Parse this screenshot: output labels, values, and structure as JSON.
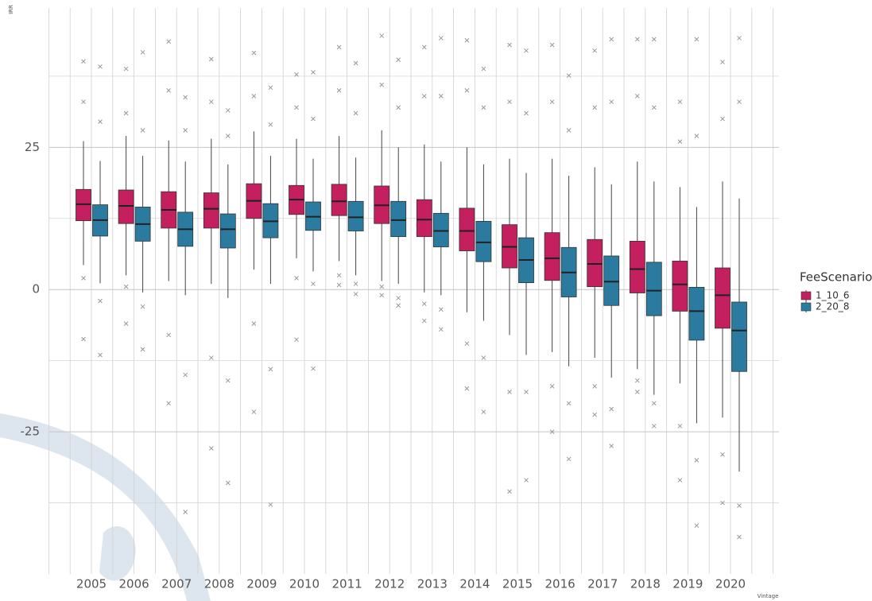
{
  "chart_data": {
    "type": "boxplot",
    "y_label": "IRR",
    "x_label": "Vintage",
    "legend_title": "FeeScenario",
    "categories": [
      "2005",
      "2006",
      "2007",
      "2008",
      "2009",
      "2010",
      "2011",
      "2012",
      "2013",
      "2014",
      "2015",
      "2016",
      "2017",
      "2018",
      "2019",
      "2020"
    ],
    "ylim": [
      -50,
      49.5
    ],
    "yticks": [
      -25,
      0,
      25
    ],
    "minor_yticks": [
      -37.5,
      -12.5,
      12.5,
      37.5
    ],
    "grid": true,
    "legend": "right",
    "series": [
      {
        "name": "1_10_6",
        "color": "#c41f5f",
        "boxes": [
          {
            "min": 4.3,
            "q1": 12.1,
            "median": 15.0,
            "q3": 17.6,
            "max": 26.1,
            "outliers": [
              40.1,
              33.0,
              2.0,
              -8.7
            ]
          },
          {
            "min": 2.5,
            "q1": 11.6,
            "median": 14.7,
            "q3": 17.5,
            "max": 27.0,
            "outliers": [
              38.8,
              31.0,
              0.5,
              -6.0
            ]
          },
          {
            "min": 1.5,
            "q1": 10.8,
            "median": 14.0,
            "q3": 17.2,
            "max": 26.2,
            "outliers": [
              43.6,
              35.0,
              -8.0,
              -20.0
            ]
          },
          {
            "min": 1.0,
            "q1": 10.8,
            "median": 14.2,
            "q3": 17.0,
            "max": 26.5,
            "outliers": [
              40.5,
              33.0,
              -12.0,
              -27.9
            ]
          },
          {
            "min": 3.5,
            "q1": 12.5,
            "median": 15.6,
            "q3": 18.6,
            "max": 27.8,
            "outliers": [
              41.6,
              34.0,
              -6.0,
              -21.5
            ]
          },
          {
            "min": 5.5,
            "q1": 13.2,
            "median": 15.8,
            "q3": 18.3,
            "max": 26.5,
            "outliers": [
              37.8,
              32.0,
              2.0,
              -8.8
            ]
          },
          {
            "min": 5.0,
            "q1": 13.0,
            "median": 15.5,
            "q3": 18.5,
            "max": 27.0,
            "outliers": [
              42.6,
              35.0,
              2.5,
              0.8
            ]
          },
          {
            "min": 1.5,
            "q1": 11.6,
            "median": 14.8,
            "q3": 18.2,
            "max": 28.0,
            "outliers": [
              44.6,
              36.0,
              0.5,
              -1.0
            ]
          },
          {
            "min": -0.5,
            "q1": 9.3,
            "median": 12.3,
            "q3": 15.8,
            "max": 25.5,
            "outliers": [
              42.6,
              34.0,
              -2.5,
              -5.5
            ]
          },
          {
            "min": -4.0,
            "q1": 6.8,
            "median": 10.3,
            "q3": 14.3,
            "max": 25.0,
            "outliers": [
              43.8,
              35.0,
              -9.5,
              -17.4
            ]
          },
          {
            "min": -8.0,
            "q1": 3.8,
            "median": 7.5,
            "q3": 11.4,
            "max": 23.0,
            "outliers": [
              43.0,
              33.0,
              -18.0,
              -35.5
            ]
          },
          {
            "min": -11.0,
            "q1": 1.6,
            "median": 5.5,
            "q3": 10.0,
            "max": 23.0,
            "outliers": [
              43.0,
              33.0,
              -17.0,
              -25.0
            ]
          },
          {
            "min": -12.0,
            "q1": 0.5,
            "median": 4.5,
            "q3": 8.8,
            "max": 21.5,
            "outliers": [
              42.0,
              32.0,
              -17.0,
              -22.0
            ]
          },
          {
            "min": -14.0,
            "q1": -0.6,
            "median": 3.6,
            "q3": 8.5,
            "max": 22.5,
            "outliers": [
              44.0,
              34.0,
              -16.0,
              -18.0
            ]
          },
          {
            "min": -16.5,
            "q1": -3.8,
            "median": 0.9,
            "q3": 5.0,
            "max": 18.0,
            "outliers": [
              33.0,
              26.0,
              -24.0,
              -33.5
            ]
          },
          {
            "min": -22.5,
            "q1": -6.8,
            "median": -1.0,
            "q3": 3.8,
            "max": 19.0,
            "outliers": [
              40.0,
              30.0,
              -29.0,
              -37.5
            ]
          }
        ]
      },
      {
        "name": "2_20_8",
        "color": "#2a7b9f",
        "boxes": [
          {
            "min": 1.1,
            "q1": 9.4,
            "median": 12.2,
            "q3": 14.9,
            "max": 22.6,
            "outliers": [
              39.2,
              29.5,
              -2.0,
              -11.5
            ]
          },
          {
            "min": -0.5,
            "q1": 8.5,
            "median": 11.5,
            "q3": 14.5,
            "max": 23.5,
            "outliers": [
              41.7,
              28.0,
              -3.0,
              -10.5
            ]
          },
          {
            "min": -1.0,
            "q1": 7.6,
            "median": 10.6,
            "q3": 13.6,
            "max": 22.5,
            "outliers": [
              33.8,
              28.0,
              -15.0,
              -39.1
            ]
          },
          {
            "min": -1.5,
            "q1": 7.3,
            "median": 10.6,
            "q3": 13.3,
            "max": 22.0,
            "outliers": [
              31.5,
              27.0,
              -16.0,
              -34.0
            ]
          },
          {
            "min": 1.0,
            "q1": 9.1,
            "median": 12.0,
            "q3": 15.1,
            "max": 23.5,
            "outliers": [
              35.5,
              29.0,
              -14.0,
              -37.8
            ]
          },
          {
            "min": 3.2,
            "q1": 10.4,
            "median": 12.8,
            "q3": 15.4,
            "max": 23.0,
            "outliers": [
              38.2,
              30.0,
              1.0,
              -13.9
            ]
          },
          {
            "min": 2.5,
            "q1": 10.3,
            "median": 12.7,
            "q3": 15.5,
            "max": 23.2,
            "outliers": [
              39.8,
              31.0,
              1.0,
              -0.8
            ]
          },
          {
            "min": 1.0,
            "q1": 9.3,
            "median": 12.2,
            "q3": 15.5,
            "max": 25.0,
            "outliers": [
              40.4,
              32.0,
              -1.5,
              -2.8
            ]
          },
          {
            "min": -1.0,
            "q1": 7.5,
            "median": 10.3,
            "q3": 13.4,
            "max": 22.5,
            "outliers": [
              44.2,
              34.0,
              -3.5,
              -7.0
            ]
          },
          {
            "min": -5.5,
            "q1": 4.9,
            "median": 8.3,
            "q3": 12.0,
            "max": 22.0,
            "outliers": [
              38.8,
              32.0,
              -12.0,
              -21.5
            ]
          },
          {
            "min": -11.5,
            "q1": 1.2,
            "median": 5.2,
            "q3": 9.1,
            "max": 20.5,
            "outliers": [
              42.0,
              31.0,
              -18.0,
              -33.5
            ]
          },
          {
            "min": -13.5,
            "q1": -1.3,
            "median": 3.0,
            "q3": 7.4,
            "max": 20.0,
            "outliers": [
              37.6,
              28.0,
              -20.0,
              -29.8
            ]
          },
          {
            "min": -15.5,
            "q1": -2.8,
            "median": 1.4,
            "q3": 5.9,
            "max": 18.5,
            "outliers": [
              44.0,
              33.0,
              -21.0,
              -27.5
            ]
          },
          {
            "min": -18.5,
            "q1": -4.6,
            "median": -0.2,
            "q3": 4.8,
            "max": 19.0,
            "outliers": [
              44.0,
              32.0,
              -20.0,
              -24.0
            ]
          },
          {
            "min": -23.5,
            "q1": -8.9,
            "median": -3.8,
            "q3": 0.4,
            "max": 14.5,
            "outliers": [
              44.0,
              27.0,
              -30.0,
              -41.5
            ]
          },
          {
            "min": -32.0,
            "q1": -14.4,
            "median": -7.2,
            "q3": -2.2,
            "max": 16.0,
            "outliers": [
              44.2,
              33.0,
              -38.0,
              -43.5
            ]
          }
        ]
      }
    ]
  }
}
